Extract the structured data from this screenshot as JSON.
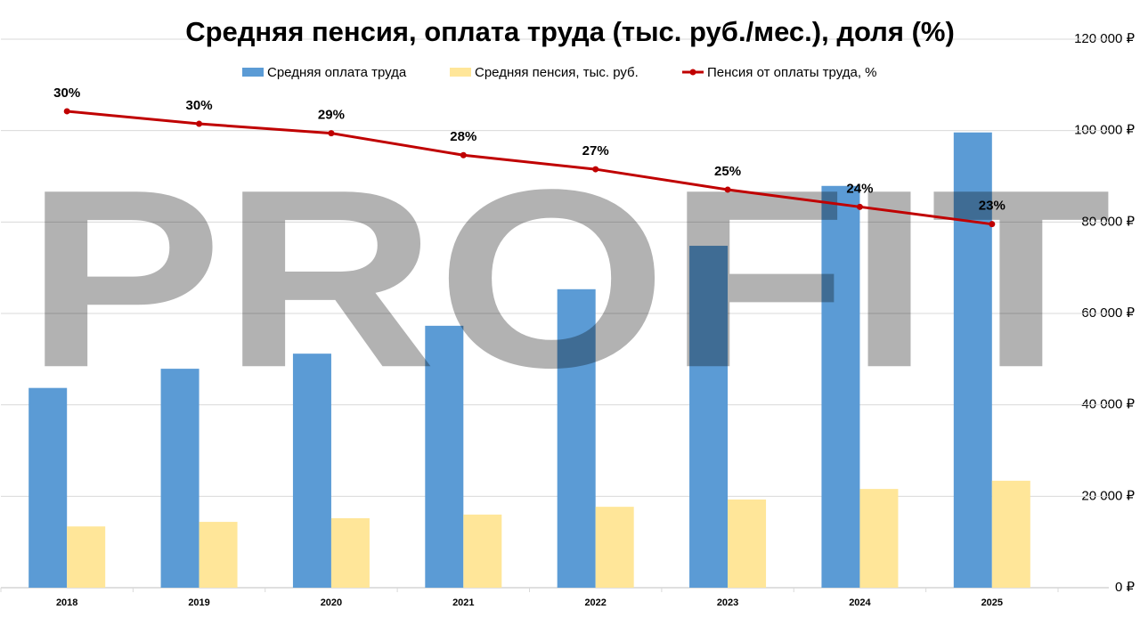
{
  "chart_data": {
    "type": "bar",
    "title": "Средняя пенсия, оплата труда (тыс. руб./мес.), доля (%)",
    "watermark": "PROFIT",
    "categories": [
      "2018",
      "2019",
      "2020",
      "2021",
      "2022",
      "2023",
      "2024",
      "2025"
    ],
    "series": [
      {
        "name": "Средняя оплата труда",
        "type": "bar",
        "color": "#5b9bd5",
        "values": [
          43700,
          47900,
          51200,
          57300,
          65300,
          74800,
          87900,
          99600
        ]
      },
      {
        "name": "Средняя пенсия, тыс. руб.",
        "type": "bar",
        "color": "#ffe699",
        "values": [
          13400,
          14400,
          15200,
          16000,
          17700,
          19300,
          21600,
          23400
        ]
      },
      {
        "name": "Пенсия от оплаты труда, %",
        "type": "line",
        "axis": "y2",
        "color": "#c00000",
        "values": [
          30.4,
          29.6,
          29.0,
          27.6,
          26.7,
          25.4,
          24.3,
          23.2
        ],
        "value_labels": [
          "30%",
          "30%",
          "29%",
          "28%",
          "27%",
          "25%",
          "24%",
          "23%"
        ]
      }
    ],
    "ylim": [
      0,
      120000
    ],
    "yticks": [
      {
        "value": 0,
        "label": "0 ₽"
      },
      {
        "value": 20000,
        "label": "20 000 ₽"
      },
      {
        "value": 40000,
        "label": "40 000 ₽"
      },
      {
        "value": 60000,
        "label": "60 000 ₽"
      },
      {
        "value": 80000,
        "label": "80 000 ₽"
      },
      {
        "value": 100000,
        "label": "100 000 ₽"
      },
      {
        "value": 120000,
        "label": "120 000 ₽"
      }
    ],
    "y2lim": [
      0,
      35
    ],
    "grid": true,
    "legend": "top"
  }
}
